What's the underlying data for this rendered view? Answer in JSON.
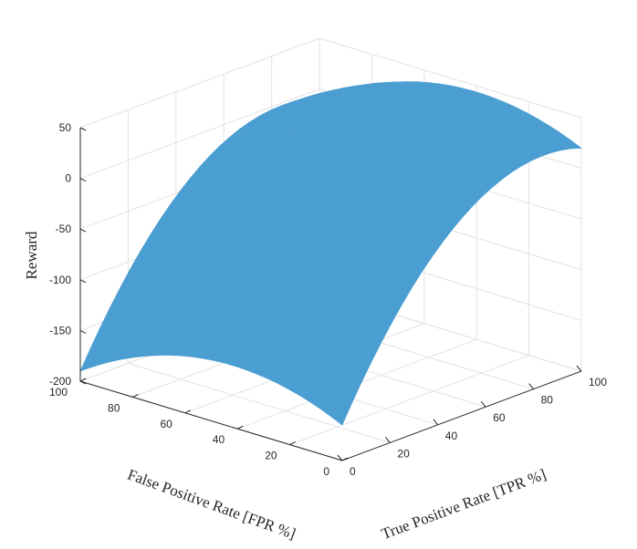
{
  "chart_data": {
    "type": "surface",
    "title": "",
    "xlabel": "True Positive Rate [TPR %]",
    "ylabel": "False Positive Rate [FPR %]",
    "zlabel": "Reward",
    "xlim": [
      0,
      100
    ],
    "ylim": [
      0,
      100
    ],
    "zlim": [
      -200,
      50
    ],
    "x_ticks": [
      "0",
      "20",
      "40",
      "60",
      "80",
      "100"
    ],
    "y_ticks": [
      "0",
      "20",
      "40",
      "60",
      "80",
      "100"
    ],
    "z_ticks": [
      "-200",
      "-150",
      "-100",
      "-50",
      "0",
      "50"
    ],
    "grid": true,
    "surface_color": "#4b9ed2",
    "corner_values": [
      {
        "tpr": 0,
        "fpr": 100,
        "reward": -190
      },
      {
        "tpr": 0,
        "fpr": 0,
        "reward": -165
      },
      {
        "tpr": 100,
        "fpr": 100,
        "reward": -10
      },
      {
        "tpr": 100,
        "fpr": 0,
        "reward": 20
      }
    ],
    "edge_midpoints": [
      {
        "tpr": 50,
        "fpr": 0,
        "reward": -5
      },
      {
        "tpr": 0,
        "fpr": 50,
        "reward": -140
      }
    ]
  }
}
